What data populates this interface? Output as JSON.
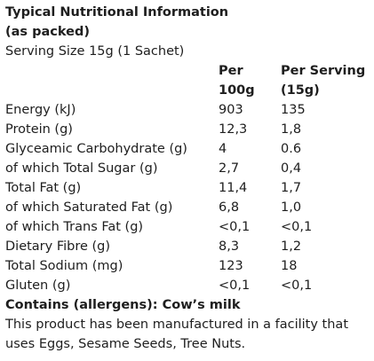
{
  "title": "Typical Nutritional Information",
  "subtitle": "(as packed)",
  "serving_size": "Serving Size 15g (1 Sachet)",
  "columns": {
    "per100_line1": "Per",
    "per100_line2": "100g",
    "serving_line1": "Per Serving",
    "serving_line2": "(15g)"
  },
  "rows": [
    {
      "label": "Energy (kJ)",
      "per100": "903",
      "serving": "135",
      "bold": true
    },
    {
      "label": "Protein (g)",
      "per100": "12,3",
      "serving": "1,8",
      "bold": false
    },
    {
      "label": "Glyceamic Carbohydrate (g)",
      "per100": "4",
      "serving": "0.6",
      "bold": true
    },
    {
      "label": "of which Total Sugar (g)",
      "per100": "2,7",
      "serving": "0,4",
      "bold": false
    },
    {
      "label": "Total Fat (g)",
      "per100": "11,4",
      "serving": "1,7",
      "bold": true
    },
    {
      "label": "of which Saturated Fat (g)",
      "per100": "6,8",
      "serving": "1,0",
      "bold": false
    },
    {
      "label": "of which Trans Fat (g)",
      "per100": "<0,1",
      "serving": "<0,1",
      "bold": false
    },
    {
      "label": "Dietary Fibre (g)",
      "per100": "8,3",
      "serving": "1,2",
      "bold": false
    },
    {
      "label": "Total Sodium (mg)",
      "per100": "123",
      "serving": "18",
      "bold": true
    },
    {
      "label": "Gluten (g)",
      "per100": "<0,1",
      "serving": "<0,1",
      "bold": false
    }
  ],
  "allergens": "Contains (allergens): Cow’s milk",
  "facility_line1": "This product has been manufactured in a facility that",
  "facility_line2": "uses Eggs, Sesame Seeds, Tree Nuts."
}
